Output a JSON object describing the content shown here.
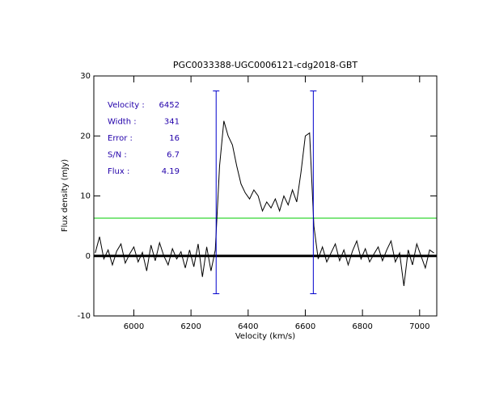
{
  "chart_data": {
    "type": "line",
    "title": "PGC0033388-UGC0006121-cdg2018-GBT",
    "x_label": "Velocity (km/s)",
    "y_label": "Flux density (mJy)",
    "xlim": [
      5860,
      7060
    ],
    "ylim": [
      -10,
      30
    ],
    "xticks": [
      6000,
      6200,
      6400,
      6600,
      6800,
      7000
    ],
    "yticks": [
      -10,
      0,
      10,
      20,
      30
    ],
    "x": [
      5865,
      5880,
      5895,
      5910,
      5925,
      5940,
      5955,
      5970,
      5985,
      6000,
      6015,
      6030,
      6045,
      6060,
      6075,
      6090,
      6105,
      6120,
      6135,
      6150,
      6165,
      6180,
      6195,
      6210,
      6225,
      6240,
      6255,
      6270,
      6285,
      6300,
      6315,
      6330,
      6345,
      6360,
      6375,
      6390,
      6405,
      6420,
      6435,
      6450,
      6465,
      6480,
      6495,
      6510,
      6525,
      6540,
      6555,
      6570,
      6585,
      6600,
      6615,
      6630,
      6645,
      6660,
      6675,
      6690,
      6705,
      6720,
      6735,
      6750,
      6765,
      6780,
      6795,
      6810,
      6825,
      6840,
      6855,
      6870,
      6885,
      6900,
      6915,
      6930,
      6945,
      6960,
      6975,
      6990,
      7005,
      7020,
      7035,
      7050
    ],
    "series": [
      {
        "color": "#000000",
        "values": [
          0.5,
          3.2,
          -0.5,
          1.0,
          -1.5,
          0.8,
          2.0,
          -1.2,
          0.3,
          1.5,
          -1.0,
          0.6,
          -2.5,
          1.8,
          -0.8,
          2.2,
          0.0,
          -1.5,
          1.2,
          -0.5,
          0.7,
          -2.0,
          1.0,
          -1.8,
          2.0,
          -3.5,
          1.5,
          -2.5,
          1.0,
          15.0,
          22.5,
          20.0,
          18.5,
          15.0,
          12.0,
          10.5,
          9.5,
          11.0,
          10.0,
          7.5,
          9.0,
          8.0,
          9.5,
          7.5,
          10.0,
          8.5,
          11.0,
          9.0,
          14.0,
          20.0,
          20.5,
          5.0,
          -0.5,
          1.5,
          -1.0,
          0.5,
          2.0,
          -0.8,
          1.0,
          -1.5,
          0.8,
          2.5,
          -0.5,
          1.2,
          -1.0,
          0.3,
          1.5,
          -0.8,
          1.0,
          2.5,
          -1.0,
          0.5,
          -5.0,
          1.0,
          -1.5,
          2.0,
          0.0,
          -2.0,
          1.0,
          0.5
        ]
      }
    ],
    "zero_line": {
      "value": 0,
      "color": "#000000"
    },
    "level_line": {
      "value": 6.3,
      "color": "#00cc00"
    },
    "edge_lines": {
      "x": [
        6288,
        6628
      ],
      "y_range": [
        -6.3,
        27.5
      ],
      "color": "#0000cc"
    },
    "annotations": [
      {
        "label": "Velocity :",
        "value": 6452
      },
      {
        "label": "Width :",
        "value": 341
      },
      {
        "label": "Error :",
        "value": 16
      },
      {
        "label": "S/N :",
        "value": 6.7
      },
      {
        "label": "Flux :",
        "value": 4.19
      }
    ],
    "annotation_color": "#2200aa"
  }
}
